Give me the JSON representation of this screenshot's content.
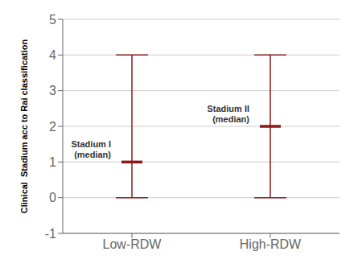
{
  "chart_data": {
    "type": "range",
    "categories": [
      "Low-RDW",
      "High-RDW"
    ],
    "values": [
      1,
      2
    ],
    "lower": [
      0,
      0
    ],
    "upper": [
      4,
      4
    ],
    "color": "#8B1A1A",
    "ylabel": "Clinical  Stadium acc to Rai classification",
    "ylim": [
      -1,
      5
    ],
    "yticks": [
      -1,
      0,
      1,
      2,
      3,
      4,
      5
    ],
    "grid": true,
    "annotations": [
      "Stadium I\n(median)",
      "Stadium II\n(median)"
    ]
  }
}
